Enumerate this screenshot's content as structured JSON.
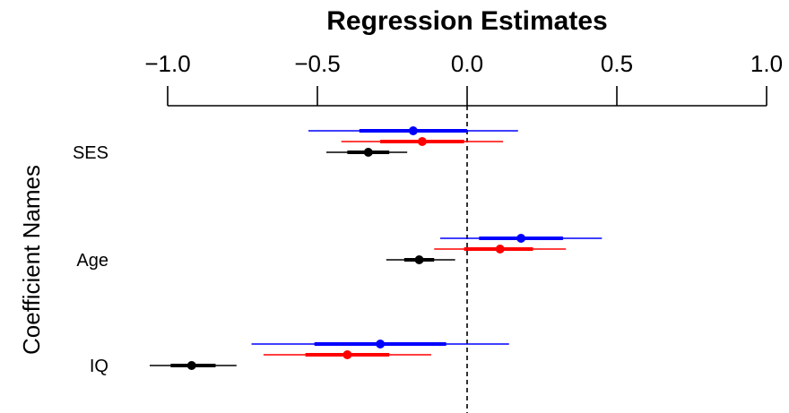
{
  "chart_data": {
    "type": "coefficient-plot",
    "title": "Regression Estimates",
    "ylabel": "Coefficient Names",
    "xlabel": "",
    "xlim": [
      -1.0,
      1.0
    ],
    "xticks": [
      -1.0,
      -0.5,
      0.0,
      0.5,
      1.0
    ],
    "xtick_labels": [
      "−1.0",
      "−0.5",
      "0.0",
      "0.5",
      "1.0"
    ],
    "axis_position": "top",
    "reference_line": 0.0,
    "categories": [
      "SES",
      "Age",
      "IQ"
    ],
    "series": [
      {
        "color": "#0000ff",
        "points": [
          {
            "category": "SES",
            "estimate": -0.18,
            "inner": [
              -0.36,
              0.0
            ],
            "outer": [
              -0.53,
              0.17
            ]
          },
          {
            "category": "Age",
            "estimate": 0.18,
            "inner": [
              0.04,
              0.32
            ],
            "outer": [
              -0.09,
              0.45
            ]
          },
          {
            "category": "IQ",
            "estimate": -0.29,
            "inner": [
              -0.51,
              -0.07
            ],
            "outer": [
              -0.72,
              0.14
            ]
          }
        ]
      },
      {
        "color": "#ff0000",
        "points": [
          {
            "category": "SES",
            "estimate": -0.15,
            "inner": [
              -0.29,
              -0.01
            ],
            "outer": [
              -0.42,
              0.12
            ]
          },
          {
            "category": "Age",
            "estimate": 0.11,
            "inner": [
              -0.01,
              0.22
            ],
            "outer": [
              -0.11,
              0.33
            ]
          },
          {
            "category": "IQ",
            "estimate": -0.4,
            "inner": [
              -0.54,
              -0.26
            ],
            "outer": [
              -0.68,
              -0.12
            ]
          }
        ]
      },
      {
        "color": "#000000",
        "points": [
          {
            "category": "SES",
            "estimate": -0.33,
            "inner": [
              -0.4,
              -0.26
            ],
            "outer": [
              -0.47,
              -0.2
            ]
          },
          {
            "category": "Age",
            "estimate": -0.16,
            "inner": [
              -0.21,
              -0.11
            ],
            "outer": [
              -0.27,
              -0.04
            ]
          },
          {
            "category": "IQ",
            "estimate": -0.92,
            "inner": [
              -0.99,
              -0.84
            ],
            "outer": [
              -1.06,
              -0.77
            ]
          }
        ]
      }
    ]
  }
}
